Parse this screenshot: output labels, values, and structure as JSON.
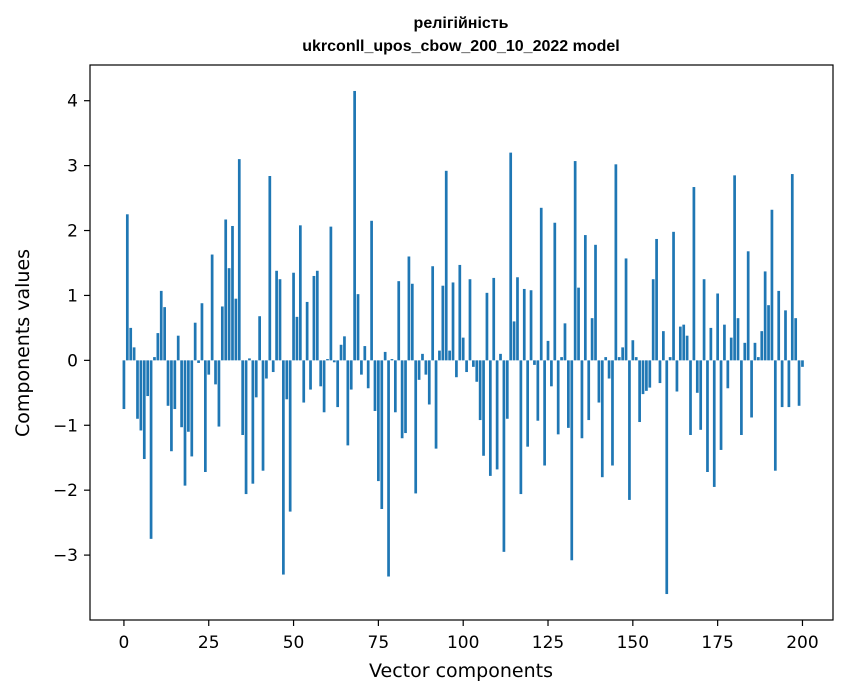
{
  "chart_data": {
    "type": "bar",
    "title_line1": "релігійність",
    "title_line2": "ukrconll_upos_cbow_200_10_2022 model",
    "xlabel": "Vector components",
    "ylabel": "Components values",
    "xlim": [
      -10,
      209
    ],
    "ylim": [
      -4.0,
      4.55
    ],
    "xticks": [
      0,
      25,
      50,
      75,
      100,
      125,
      150,
      175,
      200
    ],
    "yticks": [
      -3,
      -2,
      -1,
      0,
      1,
      2,
      3,
      4
    ],
    "ytick_labels": [
      "−3",
      "−2",
      "−1",
      "0",
      "1",
      "2",
      "3",
      "4"
    ],
    "bar_color": "#1f77b4",
    "grid": false,
    "values": [
      -0.75,
      2.25,
      0.5,
      0.2,
      -0.9,
      -1.08,
      -1.52,
      -0.55,
      -2.75,
      0.05,
      0.42,
      1.07,
      0.82,
      -0.7,
      -1.4,
      -0.75,
      0.38,
      -1.03,
      -1.93,
      -1.1,
      -1.48,
      0.58,
      -0.04,
      0.88,
      -1.72,
      -0.22,
      1.63,
      -0.37,
      -1.02,
      0.83,
      2.17,
      1.42,
      2.07,
      0.95,
      3.1,
      -1.15,
      -2.06,
      0.03,
      -1.9,
      -0.57,
      0.68,
      -1.7,
      -0.28,
      2.84,
      -0.18,
      1.38,
      1.25,
      -3.3,
      -0.6,
      -2.33,
      1.35,
      0.67,
      2.08,
      -0.65,
      0.9,
      -0.45,
      1.3,
      1.38,
      -0.4,
      -0.8,
      0.02,
      2.06,
      -0.03,
      -0.72,
      0.24,
      0.37,
      -1.31,
      -0.45,
      4.15,
      1.02,
      -0.22,
      0.22,
      -0.43,
      2.15,
      -0.78,
      -1.86,
      -2.29,
      0.13,
      -3.33,
      0.02,
      -0.8,
      1.22,
      -1.2,
      -1.12,
      1.6,
      1.18,
      -2.05,
      -0.3,
      0.1,
      -0.22,
      -0.68,
      1.45,
      -1.36,
      0.15,
      1.15,
      2.92,
      0.15,
      1.2,
      -0.26,
      1.47,
      0.35,
      -0.18,
      1.25,
      -0.1,
      -0.33,
      -0.92,
      -1.47,
      1.04,
      -1.78,
      1.27,
      -1.68,
      0.1,
      -2.95,
      -0.9,
      3.2,
      0.6,
      1.28,
      -2.06,
      1.1,
      -1.33,
      1.08,
      -0.07,
      -0.93,
      2.35,
      -1.62,
      0.3,
      -0.4,
      2.12,
      -1.14,
      0.05,
      0.57,
      -1.04,
      -3.08,
      3.07,
      1.12,
      -1.2,
      1.93,
      -0.92,
      0.65,
      1.78,
      -0.65,
      -1.8,
      0.05,
      -0.28,
      -1.62,
      3.02,
      0.05,
      0.2,
      1.57,
      -2.15,
      0.31,
      0.05,
      -0.95,
      -0.52,
      -0.47,
      -0.42,
      1.25,
      1.87,
      -0.35,
      0.45,
      -3.6,
      0.05,
      1.98,
      -0.48,
      0.52,
      0.55,
      0.38,
      -1.15,
      2.67,
      -0.5,
      -1.07,
      1.25,
      -1.72,
      0.5,
      -1.95,
      1.03,
      -1.38,
      0.55,
      -0.43,
      0.35,
      2.85,
      0.65,
      -1.15,
      0.27,
      1.68,
      -0.88,
      0.27,
      0.05,
      0.45,
      1.37,
      0.85,
      2.32,
      -1.7,
      1.07,
      -0.72,
      0.77,
      -0.72,
      2.87,
      0.65,
      -0.7,
      -0.1
    ]
  }
}
